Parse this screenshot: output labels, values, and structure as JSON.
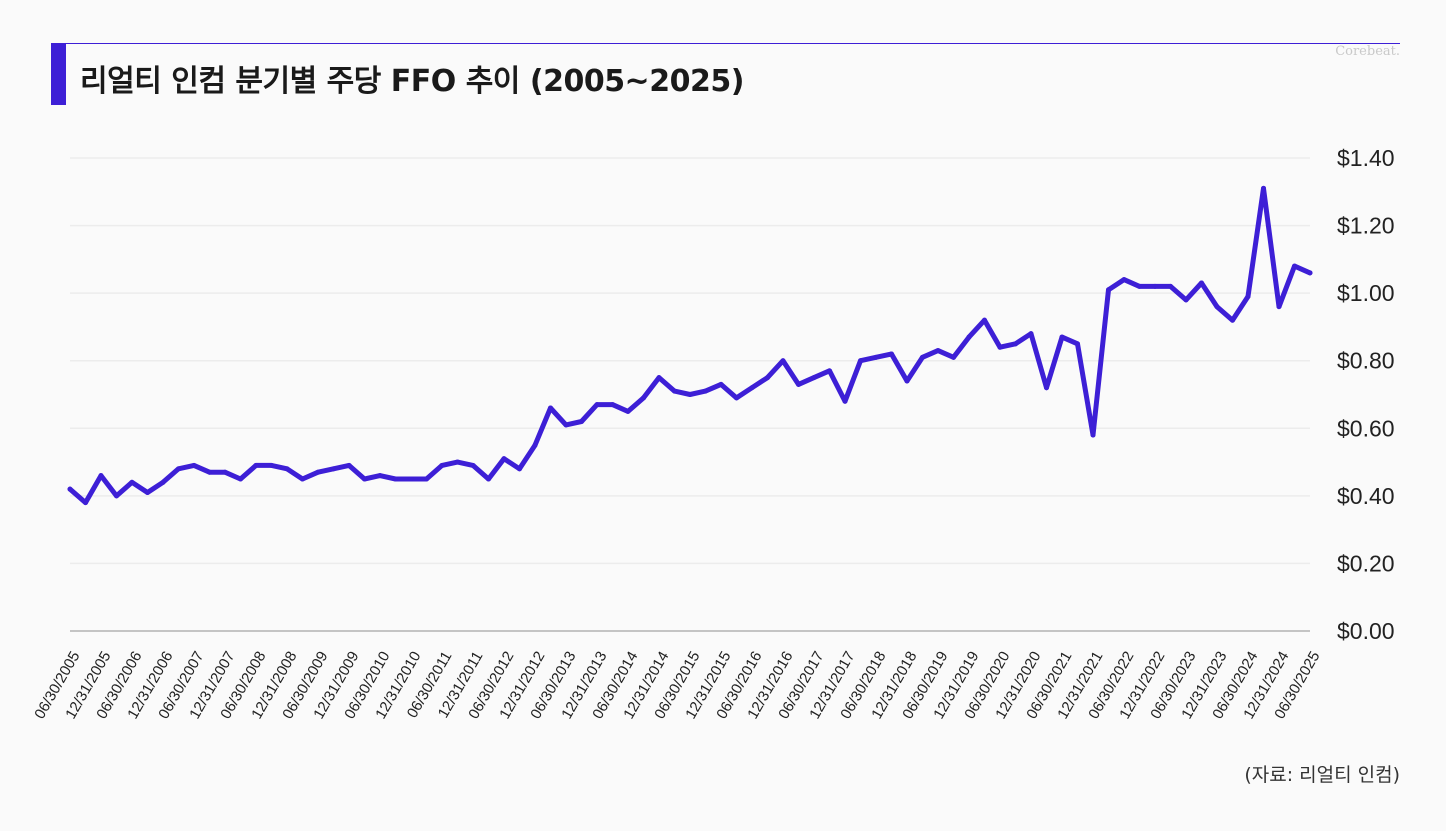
{
  "header": {
    "title": "리얼티 인컴 분기별 주당 FFO 추이 (2005~2025)",
    "brand": "Corebeat.",
    "accent_color": "#3d1fd6"
  },
  "footer": {
    "source": "(자료: 리얼티 인컴)"
  },
  "chart_data": {
    "type": "line",
    "title": "리얼티 인컴 분기별 주당 FFO 추이 (2005~2025)",
    "xlabel": "",
    "ylabel": "",
    "ylim": [
      0,
      1.4
    ],
    "yticks": [
      "$0.00",
      "$0.20",
      "$0.40",
      "$0.60",
      "$0.80",
      "$1.00",
      "$1.20",
      "$1.40"
    ],
    "y_axis_position": "right",
    "grid": true,
    "legend": "none",
    "line_color": "#3d1fd6",
    "x_tick_labels": [
      "06/30/2005",
      "12/31/2005",
      "06/30/2006",
      "12/31/2006",
      "06/30/2007",
      "12/31/2007",
      "06/30/2008",
      "12/31/2008",
      "06/30/2009",
      "12/31/2009",
      "06/30/2010",
      "12/31/2010",
      "06/30/2011",
      "12/31/2011",
      "06/30/2012",
      "12/31/2012",
      "06/30/2013",
      "12/31/2013",
      "06/30/2014",
      "12/31/2014",
      "06/30/2015",
      "12/31/2015",
      "06/30/2016",
      "12/31/2016",
      "06/30/2017",
      "12/31/2017",
      "06/30/2018",
      "12/31/2018",
      "06/30/2019",
      "12/31/2019",
      "06/30/2020",
      "12/31/2020",
      "06/30/2021",
      "12/31/2021",
      "06/30/2022",
      "12/31/2022",
      "06/30/2023",
      "12/31/2023",
      "06/30/2024",
      "12/31/2024",
      "06/30/2025"
    ],
    "x": [
      "06/30/2005",
      "09/30/2005",
      "12/31/2005",
      "03/31/2006",
      "06/30/2006",
      "09/30/2006",
      "12/31/2006",
      "03/31/2007",
      "06/30/2007",
      "09/30/2007",
      "12/31/2007",
      "03/31/2008",
      "06/30/2008",
      "09/30/2008",
      "12/31/2008",
      "03/31/2009",
      "06/30/2009",
      "09/30/2009",
      "12/31/2009",
      "03/31/2010",
      "06/30/2010",
      "09/30/2010",
      "12/31/2010",
      "03/31/2011",
      "06/30/2011",
      "09/30/2011",
      "12/31/2011",
      "03/31/2012",
      "06/30/2012",
      "09/30/2012",
      "12/31/2012",
      "03/31/2013",
      "06/30/2013",
      "09/30/2013",
      "12/31/2013",
      "03/31/2014",
      "06/30/2014",
      "09/30/2014",
      "12/31/2014",
      "03/31/2015",
      "06/30/2015",
      "09/30/2015",
      "12/31/2015",
      "03/31/2016",
      "06/30/2016",
      "09/30/2016",
      "12/31/2016",
      "03/31/2017",
      "06/30/2017",
      "09/30/2017",
      "12/31/2017",
      "03/31/2018",
      "06/30/2018",
      "09/30/2018",
      "12/31/2018",
      "03/31/2019",
      "06/30/2019",
      "09/30/2019",
      "12/31/2019",
      "03/31/2020",
      "06/30/2020",
      "09/30/2020",
      "12/31/2020",
      "03/31/2021",
      "06/30/2021",
      "09/30/2021",
      "12/31/2021",
      "03/31/2022",
      "06/30/2022",
      "09/30/2022",
      "12/31/2022",
      "03/31/2023",
      "06/30/2023",
      "09/30/2023",
      "12/31/2023",
      "03/31/2024",
      "06/30/2024",
      "09/30/2024",
      "12/31/2024",
      "03/31/2025",
      "06/30/2025"
    ],
    "values": [
      0.42,
      0.38,
      0.46,
      0.4,
      0.44,
      0.41,
      0.44,
      0.48,
      0.49,
      0.47,
      0.47,
      0.45,
      0.49,
      0.49,
      0.48,
      0.45,
      0.47,
      0.48,
      0.49,
      0.45,
      0.46,
      0.45,
      0.45,
      0.45,
      0.49,
      0.5,
      0.49,
      0.45,
      0.51,
      0.48,
      0.55,
      0.66,
      0.61,
      0.62,
      0.67,
      0.67,
      0.65,
      0.69,
      0.75,
      0.71,
      0.7,
      0.71,
      0.73,
      0.69,
      0.72,
      0.75,
      0.8,
      0.73,
      0.75,
      0.77,
      0.68,
      0.8,
      0.81,
      0.82,
      0.74,
      0.81,
      0.83,
      0.81,
      0.87,
      0.92,
      0.84,
      0.85,
      0.88,
      0.72,
      0.87,
      0.85,
      0.58,
      1.01,
      1.04,
      1.02,
      1.02,
      1.02,
      0.98,
      1.03,
      0.96,
      0.92,
      0.99,
      1.31,
      0.96,
      1.08,
      1.06
    ]
  }
}
